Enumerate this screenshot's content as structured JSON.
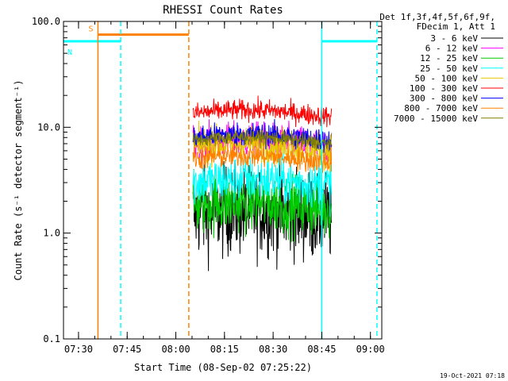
{
  "chart_data": {
    "type": "line",
    "title": "RHESSI Count Rates",
    "xlabel": "Start Time (08-Sep-02 07:25:22)",
    "ylabel": "Count Rate (s⁻¹ detector segment⁻¹)",
    "yscale": "log",
    "ylim": [
      0.1,
      100
    ],
    "xlim": [
      "07:25:22",
      "09:03:30"
    ],
    "x_ticks": [
      "07:30",
      "07:45",
      "08:00",
      "08:15",
      "08:30",
      "08:45",
      "09:00"
    ],
    "y_ticks": [
      "0.1",
      "1.0",
      "10.0",
      "100.0"
    ],
    "grid": false,
    "legend_position": "right",
    "legend_header": [
      "Det 1f,3f,4f,5f,6f,9f,",
      "FDecim 1, Att 1"
    ],
    "data_interval": [
      "08:05",
      "08:48"
    ],
    "series": [
      {
        "name": "3 - 6 keV",
        "color": "#000000",
        "level": 1.5,
        "spread": 0.3
      },
      {
        "name": "6 - 12 keV",
        "color": "#ff00ff",
        "level": 7.0,
        "spread": 0.12
      },
      {
        "name": "12 - 25 keV",
        "color": "#00cc00",
        "level": 1.8,
        "spread": 0.2
      },
      {
        "name": "25 - 50 keV",
        "color": "#00ffff",
        "level": 3.0,
        "spread": 0.16
      },
      {
        "name": "50 - 100 keV",
        "color": "#e6c800",
        "level": 6.5,
        "spread": 0.12
      },
      {
        "name": "100 - 300 keV",
        "color": "#ff0000",
        "level": 13.5,
        "spread": 0.07
      },
      {
        "name": "300 - 800 keV",
        "color": "#0000ff",
        "level": 8.0,
        "spread": 0.08
      },
      {
        "name": "800 - 7000 keV",
        "color": "#ff8000",
        "level": 5.0,
        "spread": 0.08
      },
      {
        "name": "7000 - 15000 keV",
        "color": "#808000",
        "level": 7.5,
        "spread": 0.05
      }
    ],
    "annotations": [
      {
        "label": "S",
        "color": "#ff8000",
        "value": 75,
        "start": "07:36",
        "end": "08:04"
      },
      {
        "label": "N",
        "color": "#00ffff",
        "value": 65,
        "start": "07:25:22",
        "end": "07:43"
      },
      {
        "label": "",
        "color": "#00ffff",
        "value": 65,
        "start": "08:45",
        "end": "09:02"
      }
    ],
    "vertical_markers": [
      {
        "time": "07:36",
        "color": "#ff8000",
        "style": "solid"
      },
      {
        "time": "07:43",
        "color": "#00ffff",
        "style": "dashed"
      },
      {
        "time": "08:04",
        "color": "#ff8000",
        "style": "dashed"
      },
      {
        "time": "08:45",
        "color": "#00ffff",
        "style": "solid"
      },
      {
        "time": "09:02",
        "color": "#00ffff",
        "style": "dashed"
      }
    ],
    "footer": "19-Oct-2021 07:18"
  }
}
